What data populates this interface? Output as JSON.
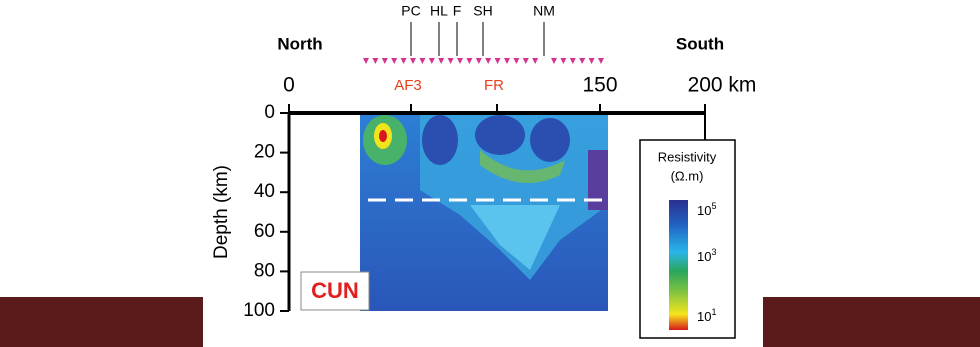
{
  "header": {
    "left": "North",
    "right": "South"
  },
  "stations": [
    "PC",
    "HL",
    "F",
    "SH",
    "NM"
  ],
  "features": [
    "AF3",
    "FR"
  ],
  "x_axis": {
    "ticks": [
      "0",
      "150",
      "200 km"
    ]
  },
  "y_axis": {
    "label": "Depth (km)",
    "ticks": [
      "0",
      "20",
      "40",
      "60",
      "80",
      "100"
    ]
  },
  "site": "CUN",
  "legend": {
    "title": "Resistivity",
    "unit": "(Ω.m)",
    "labels": [
      {
        "base": "10",
        "exp": "5"
      },
      {
        "base": "10",
        "exp": "3"
      },
      {
        "base": "10",
        "exp": "1"
      }
    ]
  }
}
